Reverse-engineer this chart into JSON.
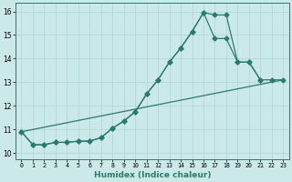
{
  "xlabel": "Humidex (Indice chaleur)",
  "xlim": [
    -0.5,
    23.5
  ],
  "ylim": [
    9.75,
    16.35
  ],
  "yticks": [
    10,
    11,
    12,
    13,
    14,
    15,
    16
  ],
  "xticks": [
    0,
    1,
    2,
    3,
    4,
    5,
    6,
    7,
    8,
    9,
    10,
    11,
    12,
    13,
    14,
    15,
    16,
    17,
    18,
    19,
    20,
    21,
    22,
    23
  ],
  "xtick_labels": [
    "0",
    "1",
    "2",
    "3",
    "4",
    "5",
    "6",
    "7",
    "8",
    "9",
    "10",
    "11",
    "12",
    "13",
    "14",
    "15",
    "16",
    "17",
    "18",
    "19",
    "20",
    "21",
    "22",
    "23"
  ],
  "bg_color": "#cce9e9",
  "line_color": "#2a7a6f",
  "grid_color": "#aed4d4",
  "line_width": 0.9,
  "marker_size": 2.5,
  "series1_x": [
    0,
    1,
    2,
    3,
    4,
    5,
    6,
    7,
    8,
    9,
    10,
    11,
    12,
    13,
    14,
    15,
    16,
    17,
    18,
    19,
    20,
    21
  ],
  "series1_y": [
    10.9,
    10.35,
    10.35,
    10.45,
    10.45,
    10.5,
    10.5,
    10.65,
    11.05,
    11.35,
    11.75,
    12.5,
    13.1,
    13.85,
    14.45,
    15.15,
    15.95,
    15.85,
    15.85,
    13.85,
    13.85,
    13.1
  ],
  "series2_x": [
    0,
    1,
    2,
    3,
    4,
    5,
    6,
    7,
    8,
    9,
    10,
    11,
    12,
    13,
    14,
    15,
    16,
    17,
    18,
    19,
    20,
    21,
    22,
    23
  ],
  "series2_y": [
    10.9,
    10.35,
    10.35,
    10.45,
    10.45,
    10.5,
    10.5,
    10.65,
    11.05,
    11.35,
    11.75,
    12.5,
    13.1,
    13.85,
    14.45,
    15.15,
    15.95,
    14.85,
    14.85,
    13.85,
    13.85,
    13.1,
    13.1,
    13.1
  ],
  "series3_x": [
    0,
    23
  ],
  "series3_y": [
    10.9,
    13.1
  ]
}
